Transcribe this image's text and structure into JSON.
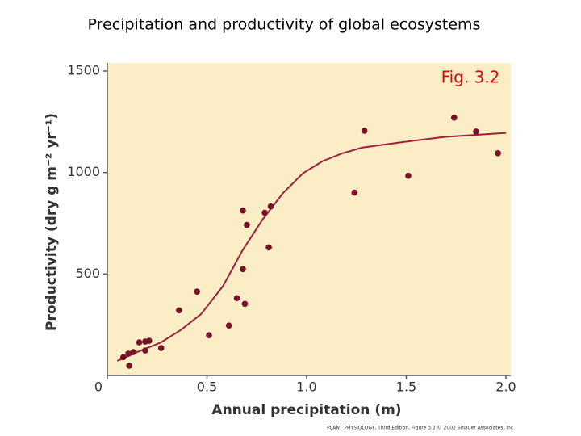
{
  "chart_data": {
    "type": "scatter",
    "title": "Precipitation and productivity of global ecosystems",
    "annotation": "Fig. 3.2",
    "xlabel": "Annual precipitation (m)",
    "ylabel": "Productivity (dry g m⁻² yr⁻¹)",
    "credit": "PLANT PHYSIOLOGY, Third Edition, Figure 3.2 © 2002 Sinauer Associates, Inc.",
    "xlim": [
      0,
      2
    ],
    "ylim": [
      0,
      1500
    ],
    "xticks": [
      0,
      0.5,
      {
        "value": 1,
        "label": "1.0"
      },
      1.5,
      {
        "value": 2,
        "label": "2.0"
      }
    ],
    "yticks": [
      500,
      1000,
      1500
    ],
    "color": "#7a1028",
    "x": [
      0.08,
      0.105,
      0.13,
      0.11,
      0.16,
      0.19,
      0.21,
      0.19,
      0.27,
      0.36,
      0.45,
      0.51,
      0.61,
      0.65,
      0.68,
      0.68,
      0.69,
      0.7,
      0.79,
      0.82,
      0.81,
      1.24,
      1.29,
      1.51,
      1.74,
      1.85,
      1.96
    ],
    "values": [
      90,
      107,
      115,
      48,
      163,
      167,
      171,
      123,
      135,
      321,
      413,
      198,
      246,
      381,
      813,
      524,
      353,
      742,
      802,
      833,
      631,
      901,
      1206,
      984,
      1270,
      1202,
      1095
    ],
    "curve": {
      "color": "#a0203c",
      "x": [
        0.05,
        0.15,
        0.27,
        0.37,
        0.47,
        0.58,
        0.68,
        0.78,
        0.88,
        0.98,
        1.08,
        1.18,
        1.28,
        1.49,
        1.69,
        2.0
      ],
      "values": [
        72,
        115,
        163,
        225,
        302,
        440,
        619,
        770,
        897,
        995,
        1056,
        1095,
        1123,
        1151,
        1175,
        1195
      ]
    }
  }
}
